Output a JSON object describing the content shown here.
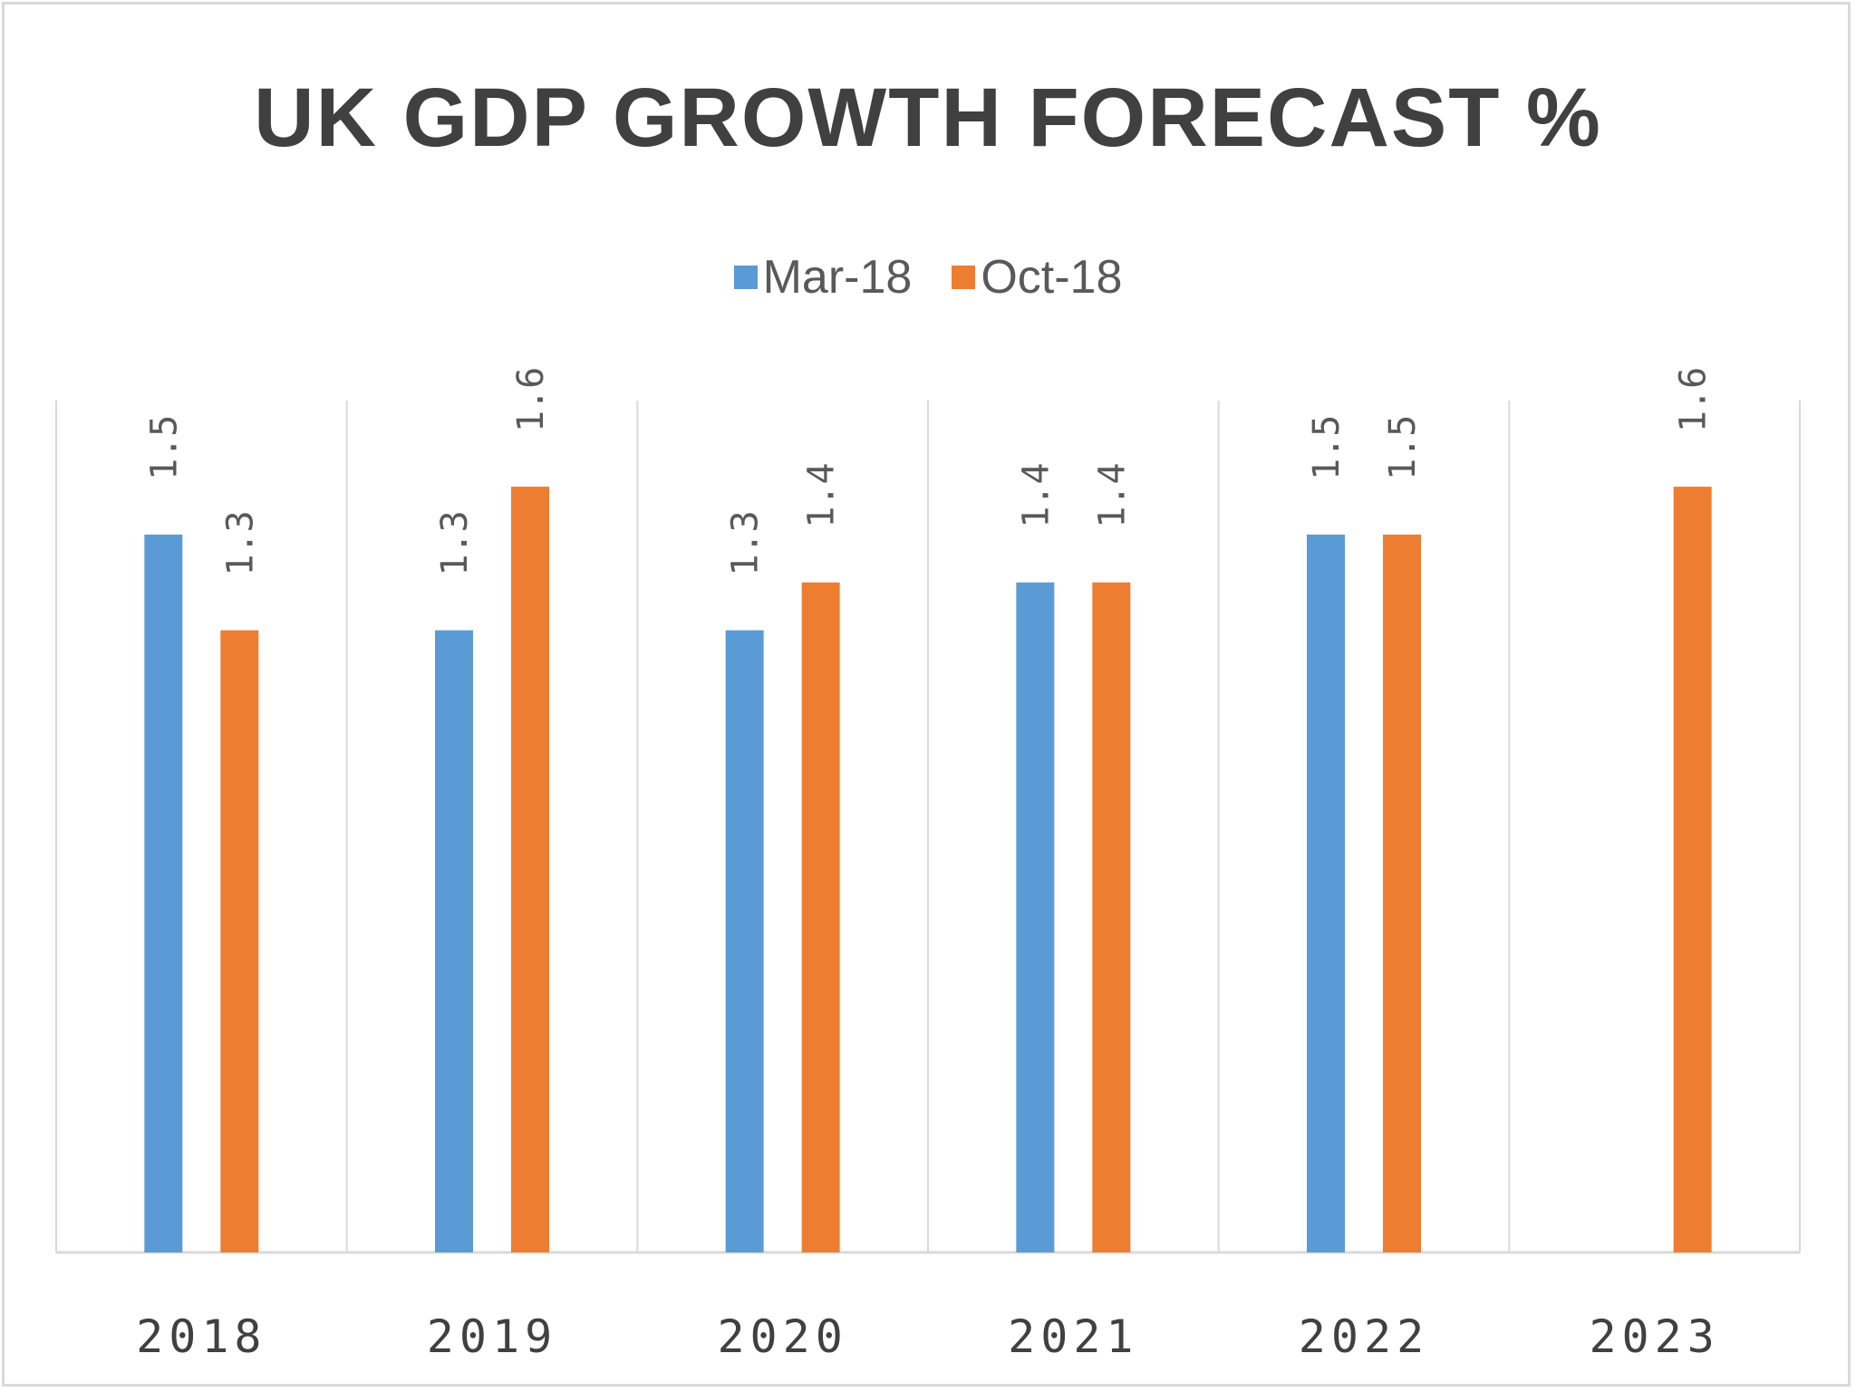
{
  "chart_data": {
    "type": "bar",
    "title": "UK GDP GROWTH FORECAST %",
    "xlabel": "",
    "ylabel": "",
    "categories": [
      "2018",
      "2019",
      "2020",
      "2021",
      "2022",
      "2023"
    ],
    "series": [
      {
        "name": "Mar-18",
        "color": "#5B9BD5",
        "values": [
          1.5,
          1.3,
          1.3,
          1.4,
          1.5,
          null
        ]
      },
      {
        "name": "Oct-18",
        "color": "#ED7D31",
        "values": [
          1.3,
          1.6,
          1.4,
          1.4,
          1.5,
          1.6
        ]
      }
    ],
    "ylim": [
      0,
      1.78
    ],
    "y_axis_visible": false,
    "grid": "vertical category separators",
    "legend": "top-center",
    "data_labels": "rotated, above bars"
  }
}
